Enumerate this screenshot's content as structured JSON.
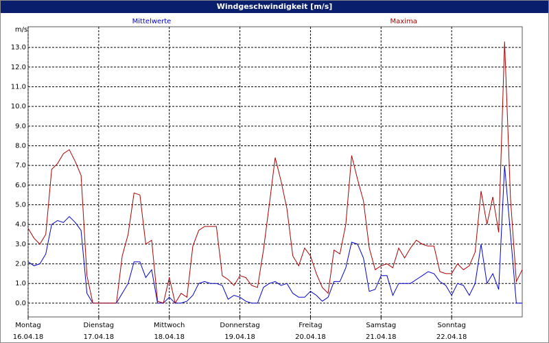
{
  "chart_data": {
    "type": "line",
    "title": "Windgeschwindigkeit [m/s]",
    "y_label": "m/s",
    "x": [
      0,
      2,
      4,
      6,
      8,
      10,
      12,
      14,
      16,
      18,
      20,
      22,
      24,
      26,
      28,
      30,
      32,
      34,
      36,
      38,
      40,
      42,
      44,
      46,
      48,
      50,
      52,
      54,
      56,
      58,
      60,
      62,
      64,
      66,
      68,
      70,
      72,
      74,
      76,
      78,
      80,
      82,
      84,
      86,
      88,
      90,
      92,
      94,
      96,
      98,
      100,
      102,
      104,
      106,
      108,
      110,
      112,
      114,
      116,
      118,
      120,
      122,
      124,
      126,
      128,
      130,
      132,
      134,
      136,
      138,
      140,
      142,
      144,
      146,
      148,
      150,
      152,
      154,
      156,
      158,
      160,
      162,
      164,
      166,
      168
    ],
    "series": [
      {
        "name": "Mittelwerte",
        "color": "#0000cc",
        "values": [
          2.1,
          1.9,
          2.0,
          2.5,
          4.0,
          4.2,
          4.1,
          4.4,
          4.1,
          3.7,
          0.5,
          0,
          0,
          0,
          0,
          0,
          0.5,
          1.0,
          2.1,
          2.1,
          1.3,
          1.7,
          0.0,
          0.0,
          0.3,
          0.0,
          0.0,
          0.1,
          0.4,
          1.0,
          1.1,
          1.0,
          1.0,
          0.9,
          0.2,
          0.4,
          0.3,
          0.1,
          0.0,
          0.0,
          0.8,
          1.0,
          1.1,
          0.9,
          1.0,
          0.5,
          0.3,
          0.3,
          0.6,
          0.4,
          0.1,
          0.3,
          1.1,
          1.1,
          1.8,
          3.1,
          3.0,
          2.3,
          0.6,
          0.7,
          1.4,
          1.4,
          0.4,
          1.0,
          1.0,
          1.0,
          1.2,
          1.4,
          1.6,
          1.5,
          1.1,
          0.9,
          0.4,
          1.0,
          0.9,
          0.4,
          1.0,
          3.0,
          1.0,
          1.5,
          0.7,
          7.0,
          3.5,
          0.0,
          0.0
        ]
      },
      {
        "name": "Maxima",
        "color": "#aa0000",
        "values": [
          3.8,
          3.3,
          3.0,
          3.5,
          6.8,
          7.1,
          7.6,
          7.8,
          7.2,
          6.5,
          1.4,
          0,
          0,
          0,
          0,
          0,
          2.4,
          3.5,
          5.6,
          5.5,
          3.0,
          3.2,
          0.1,
          0,
          1.3,
          0,
          0.5,
          0.3,
          2.9,
          3.7,
          3.9,
          3.9,
          3.9,
          1.4,
          1.2,
          0.9,
          1.4,
          1.3,
          0.9,
          0.8,
          2.7,
          5.0,
          7.4,
          6.2,
          4.8,
          2.4,
          1.9,
          2.8,
          2.4,
          1.5,
          0.8,
          0.5,
          2.7,
          2.5,
          4.0,
          7.5,
          6.3,
          5.2,
          2.8,
          1.7,
          1.9,
          2.0,
          1.8,
          2.8,
          2.3,
          2.8,
          3.2,
          3.0,
          2.9,
          2.9,
          1.6,
          1.5,
          1.5,
          2.0,
          1.7,
          1.9,
          2.6,
          5.7,
          4.0,
          5.4,
          3.6,
          13.3,
          5.3,
          1.1,
          1.7
        ]
      }
    ],
    "xlim": [
      0,
      168
    ],
    "xticks": [
      {
        "value": 0,
        "label": "Montag\n16.04.18"
      },
      {
        "value": 24,
        "label": "Dienstag\n17.04.18"
      },
      {
        "value": 48,
        "label": "Mittwoch\n18.04.18"
      },
      {
        "value": 72,
        "label": "Donnerstag\n19.04.18"
      },
      {
        "value": 96,
        "label": "Freitag\n20.04.18"
      },
      {
        "value": 120,
        "label": "Samstag\n21.04.18"
      },
      {
        "value": 144,
        "label": "Sonntag\n22.04.18"
      }
    ],
    "ylim": [
      -0.7,
      14.05
    ],
    "yticks": [
      {
        "value": 0,
        "label": "0.0"
      },
      {
        "value": 1,
        "label": "1.0"
      },
      {
        "value": 2,
        "label": "2.0"
      },
      {
        "value": 3,
        "label": "3.0"
      },
      {
        "value": 4,
        "label": "4.0"
      },
      {
        "value": 5,
        "label": "5.0"
      },
      {
        "value": 6,
        "label": "6.0"
      },
      {
        "value": 7,
        "label": "7.0"
      },
      {
        "value": 8,
        "label": "8.0"
      },
      {
        "value": 9,
        "label": "9.0"
      },
      {
        "value": 10,
        "label": "10.0"
      },
      {
        "value": 11,
        "label": "11.0"
      },
      {
        "value": 12,
        "label": "12.0"
      },
      {
        "value": 13,
        "label": "13.0"
      }
    ],
    "grid": true
  }
}
